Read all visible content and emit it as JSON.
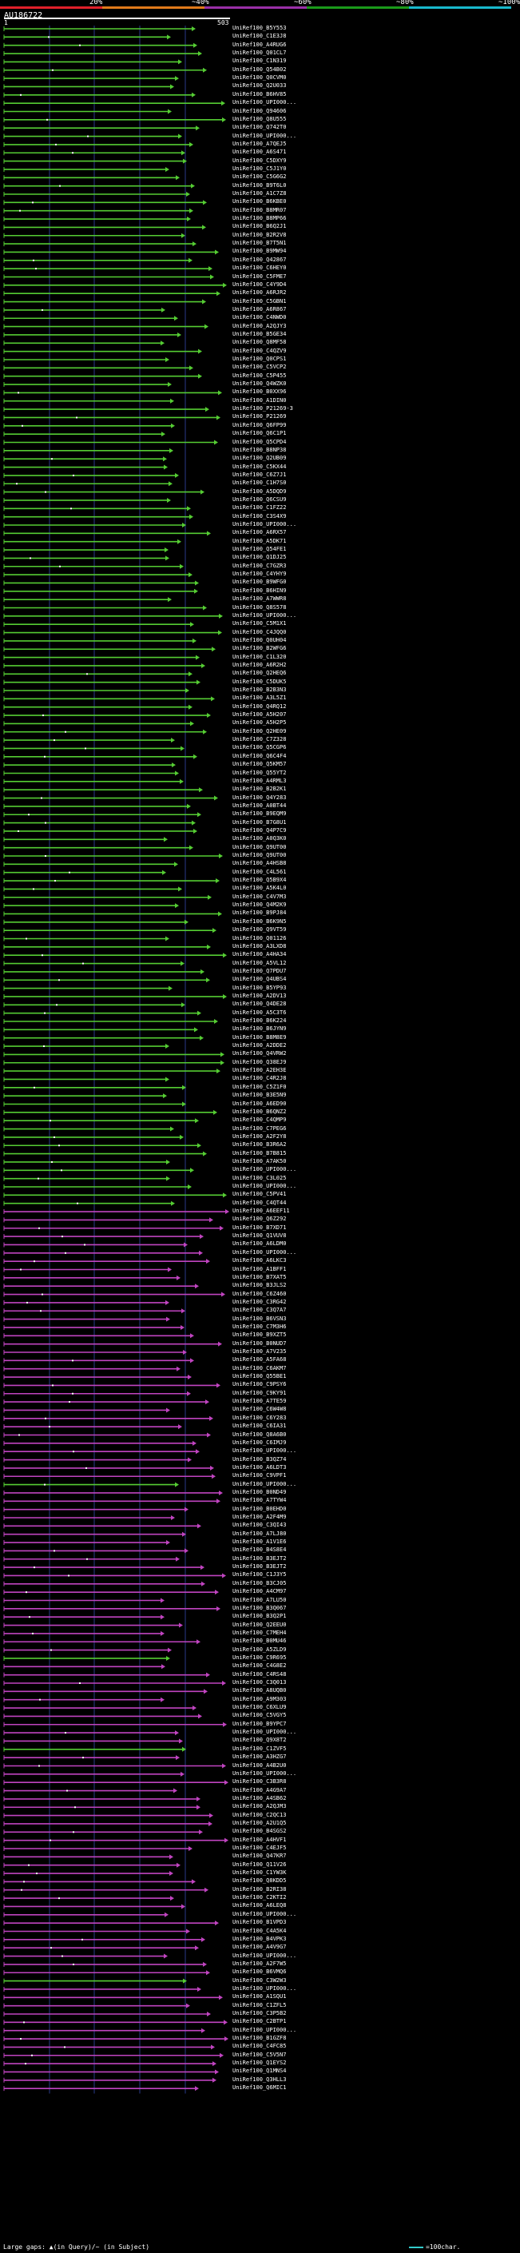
{
  "colorbar": {
    "segments": [
      {
        "label": "20%",
        "color": "#e0202a"
      },
      {
        "label": "~40%",
        "color": "#e07a1a"
      },
      {
        "label": "~60%",
        "color": "#9a2fa8"
      },
      {
        "label": "~80%",
        "color": "#1a9a1a"
      },
      {
        "label": "~100%",
        "color": "#18b8cc"
      }
    ]
  },
  "query": {
    "name": "AU186722",
    "start": "1",
    "end": "503"
  },
  "colors": {
    "green": "#55cc33",
    "magenta": "#c044c0",
    "dark_green": "#1e8a1e",
    "grid": "#2a3a8a",
    "ruler": "#ffffff"
  },
  "hits": [
    "UniRef100_B5Y553",
    "UniRef100_C1E3J8",
    "UniRef100_A4RUG6",
    "UniRef100_Q01CL7",
    "UniRef100_C1N319",
    "UniRef100_Q54B02",
    "UniRef100_Q0CVM0",
    "UniRef100_Q2U033",
    "UniRef100_B6HV85",
    "UniRef100_UPI000...",
    "UniRef100_Q94606",
    "UniRef100_Q8U555",
    "UniRef100_Q742T0",
    "UniRef100_UPI000...",
    "UniRef100_A7QEJ5",
    "UniRef100_A6S471",
    "UniRef100_C5DXY9",
    "UniRef100_C5J1Y0",
    "UniRef100_C5G6G2",
    "UniRef100_B9T6L0",
    "UniRef100_A1C7Z8",
    "UniRef100_B6KBE0",
    "UniRef100_B8MR07",
    "UniRef100_B8MP66",
    "UniRef100_B6Q2J1",
    "UniRef100_B2R2V8",
    "UniRef100_B7T5N1",
    "UniRef100_B9MW94",
    "UniRef100_Q42867",
    "UniRef100_C6HEY0",
    "UniRef100_C5FME7",
    "UniRef100_C4Y9D4",
    "UniRef100_A6RJR2",
    "UniRef100_C5GBN1",
    "UniRef100_A6R867",
    "UniRef100_C4NWD0",
    "UniRef100_A2QJY3",
    "UniRef100_B5GE34",
    "UniRef100_Q8MF58",
    "UniRef100_C4QZV9",
    "UniRef100_Q0CPS1",
    "UniRef100_C5VCP2",
    "UniRef100_C5P455",
    "UniRef100_Q4WZK0",
    "UniRef100_B0XX96",
    "UniRef100_A1DIN0",
    "UniRef100_P21269-3",
    "UniRef100_P21269",
    "UniRef100_Q6FP99",
    "UniRef100_Q6C1P1",
    "UniRef100_Q5CPD4",
    "UniRef100_B8NP38",
    "UniRef100_Q2UB09",
    "UniRef100_C5KX44",
    "UniRef100_C6Z7J1",
    "UniRef100_C1H7S0",
    "UniRef100_A5DQD9",
    "UniRef100_Q6CSU9",
    "UniRef100_C1FZ22",
    "UniRef100_C3S4X9",
    "UniRef100_UPI000...",
    "UniRef100_A6RX57",
    "UniRef100_A5DK71",
    "UniRef100_Q54FE1",
    "UniRef100_Q1DJ25",
    "UniRef100_C7GZR3",
    "UniRef100_C4YHY9",
    "UniRef100_B9WFG0",
    "UniRef100_B6HIN9",
    "UniRef100_A7WWR8",
    "UniRef100_Q8S578",
    "UniRef100_UPI000...",
    "UniRef100_C5M1X1",
    "UniRef100_C4JQQ0",
    "UniRef100_Q0UH04",
    "UniRef100_B2WFG6",
    "UniRef100_C1L320",
    "UniRef100_A6R2H2",
    "UniRef100_Q2HEQ6",
    "UniRef100_C5DUK5",
    "UniRef100_B2B3N3",
    "UniRef100_A3L5Z1",
    "UniRef100_Q4RQ12",
    "UniRef100_A5H207",
    "UniRef100_A5H2P5",
    "UniRef100_Q2HE09",
    "UniRef100_C7Z328",
    "UniRef100_Q5CGP6",
    "UniRef100_Q6C4F4",
    "UniRef100_Q5KM57",
    "UniRef100_Q55YT2",
    "UniRef100_A4RML3",
    "UniRef100_B2B2K1",
    "UniRef100_Q4Y283",
    "UniRef100_A0BT44",
    "UniRef100_B9EQM9",
    "UniRef100_B7G8U1",
    "UniRef100_Q4P7C9",
    "UniRef100_A0Q3K0",
    "UniRef100_Q9UT00",
    "UniRef100_Q9UT00",
    "UniRef100_A4HSB8",
    "UniRef100_C4L561",
    "UniRef100_Q5B9X4",
    "UniRef100_A5K4L0",
    "UniRef100_C4V7M3",
    "UniRef100_Q4M2K9",
    "UniRef100_B9PJ84",
    "UniRef100_B6K9N5",
    "UniRef100_Q9VT59",
    "UniRef100_Q01126",
    "UniRef100_A3LXD8",
    "UniRef100_A4HA34",
    "UniRef100_A5VL12",
    "UniRef100_Q7PDU7",
    "UniRef100_Q4UBS4",
    "UniRef100_B5YP93",
    "UniRef100_A2DV13",
    "UniRef100_Q4DE28",
    "UniRef100_A5C3T6",
    "UniRef100_B6K224",
    "UniRef100_B6JYN9",
    "UniRef100_B8M8E9",
    "UniRef100_A2DDE2",
    "UniRef100_Q4VRW2",
    "UniRef100_Q38EJ9",
    "UniRef100_A2EH3E",
    "UniRef100_C4R2J8",
    "UniRef100_C5Z1F0",
    "UniRef100_B3E5N9",
    "UniRef100_A6ED90",
    "UniRef100_B6QNZ2",
    "UniRef100_C4QMP9",
    "UniRef100_C7PEG6",
    "UniRef100_A2F2Y8",
    "UniRef100_B3R6A2",
    "UniRef100_B7B815",
    "UniRef100_A7AK50",
    "UniRef100_UPI000...",
    "UniRef100_C3L025",
    "UniRef100_UPI000...",
    "UniRef100_C5PV41",
    "UniRef100_C4QT44",
    "UniRef100_A6EEF11",
    "UniRef100_Q6Z292",
    "UniRef100_B7XD71",
    "UniRef100_Q1VUV8",
    "UniRef100_A6LDM0",
    "UniRef100_UPI000...",
    "UniRef100_A6LKC3",
    "UniRef100_A1BFF1",
    "UniRef100_B7XAT5",
    "UniRef100_B3JLS2",
    "UniRef100_C6Z460",
    "UniRef100_C3RG42",
    "UniRef100_C3Q7A7",
    "UniRef100_B6VSN3",
    "UniRef100_C7M3H6",
    "UniRef100_B9XZT5",
    "UniRef100_B0NUD7",
    "UniRef100_A7V235",
    "UniRef100_A5FA68",
    "UniRef100_C6AKM7",
    "UniRef100_Q55BE1",
    "UniRef100_C9PSY6",
    "UniRef100_C9KY91",
    "UniRef100_A7TE59",
    "UniRef100_C6W4W8",
    "UniRef100_C6Y283",
    "UniRef100_C6IA31",
    "UniRef100_Q8A6B0",
    "UniRef100_C6IMJ9",
    "UniRef100_UPI000...",
    "UniRef100_B3QZ74",
    "UniRef100_A6LDT3",
    "UniRef100_C9VPF1",
    "UniRef100_UPI000...",
    "UniRef100_B0ND49",
    "UniRef100_A7TYW4",
    "UniRef100_B0EHD0",
    "UniRef100_A2F4M9",
    "UniRef100_C3QI43",
    "UniRef100_A7LJ80",
    "UniRef100_A1V1E6",
    "UniRef100_B4S8E4",
    "UniRef100_B3EJT2",
    "UniRef100_B3EJT2",
    "UniRef100_C1J3Y5",
    "UniRef100_B3CJ05",
    "UniRef100_A4CM97",
    "UniRef100_A7LU50",
    "UniRef100_B3Q067",
    "UniRef100_B3Q2P1",
    "UniRef100_Q2EEU0",
    "UniRef100_C7MEH4",
    "UniRef100_B0MU46",
    "UniRef100_A5ZLD9",
    "UniRef100_C9R695",
    "UniRef100_C4G8E2",
    "UniRef100_C4RS48",
    "UniRef100_C3Q013",
    "UniRef100_A8UQB0",
    "UniRef100_A9M303",
    "UniRef100_C6XLU9",
    "UniRef100_C5VGY5",
    "UniRef100_B9YPC7",
    "UniRef100_UPI000...",
    "UniRef100_Q9X8T2",
    "UniRef100_C1ZVF5",
    "UniRef100_A3HZG7",
    "UniRef100_A4B2U0",
    "UniRef100_UPI000...",
    "UniRef100_C3B3R8",
    "UniRef100_A4G9A7",
    "UniRef100_A4SB62",
    "UniRef100_A2QJM3",
    "UniRef100_C2QC13",
    "UniRef100_A2U1Q5",
    "UniRef100_B4SGS2",
    "UniRef100_A4HVF1",
    "UniRef100_C4EJF5",
    "UniRef100_Q47KR7",
    "UniRef100_Q11V26",
    "UniRef100_C1YW3K",
    "UniRef100_Q8KDD5",
    "UniRef100_B2RI38",
    "UniRef100_C2KTI2",
    "UniRef100_A6LEQ8",
    "UniRef100_UPI000...",
    "UniRef100_B1VPD3",
    "UniRef100_C4A5K4",
    "UniRef100_B4VPK3",
    "UniRef100_A4V9G7",
    "UniRef100_UPI000...",
    "UniRef100_A2F7W5",
    "UniRef100_B6VMQ6",
    "UniRef100_C3W2W3",
    "UniRef100_UPI000...",
    "UniRef100_A1SQU1",
    "UniRef100_C1ZFL5",
    "UniRef100_C3P5B2",
    "UniRef100_C2BTP1",
    "UniRef100_UPI000...",
    "UniRef100_B1GZF8",
    "UniRef100_C4FC85",
    "UniRef100_C5V5N7",
    "UniRef100_Q1EYS2",
    "UniRef100_Q1MNS4",
    "UniRef100_Q3HLL3",
    "UniRef100_Q6MIC1"
  ],
  "legend": {
    "gaps_text": "Large gaps: ▲(in Query)/~ (in Subject)",
    "scale_text": "=100char."
  }
}
